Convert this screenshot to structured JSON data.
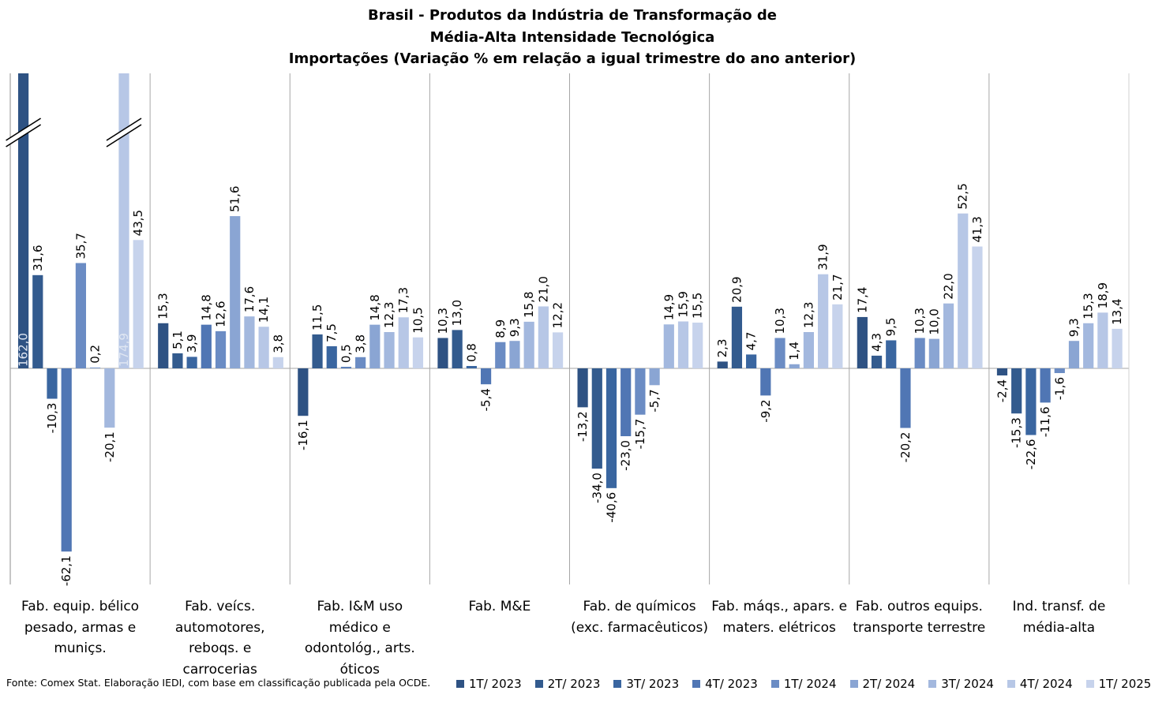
{
  "chart_data": {
    "type": "bar",
    "title_lines": [
      "Brasil - Produtos da Indústria de Transformação de",
      "Média-Alta Intensidade Tecnológica",
      "Importações (Variação % em relação a igual trimestre do ano anterior)"
    ],
    "categories": [
      [
        "Fab. equip. bélico",
        "pesado, armas e",
        "muniçs."
      ],
      [
        "Fab. veícs.",
        "automotores,",
        "reboqs. e",
        "carrocerias"
      ],
      [
        "Fab. I&M uso",
        "médico e",
        "odontológ., arts.",
        "óticos"
      ],
      [
        "Fab. M&E"
      ],
      [
        "Fab. de químicos",
        "(exc. farmacêuticos)"
      ],
      [
        "Fab. máqs., apars. e",
        "maters. elétricos"
      ],
      [
        "Fab. outros equips.",
        "transporte terrestre"
      ],
      [
        "Ind. transf. de",
        "média-alta"
      ]
    ],
    "series": [
      {
        "name": "1T/ 2023",
        "color": "#2e5283",
        "values": [
          162.0,
          15.3,
          -16.1,
          10.3,
          -13.2,
          2.3,
          17.4,
          -2.4
        ],
        "labels": [
          "162,0",
          "15,3",
          "-16,1",
          "10,3",
          "-13,2",
          "2,3",
          "17,4",
          "-2,4"
        ]
      },
      {
        "name": "2T/ 2023",
        "color": "#335b8e",
        "values": [
          31.6,
          5.1,
          11.5,
          13.0,
          -34.0,
          20.9,
          4.3,
          -15.3
        ],
        "labels": [
          "31,6",
          "5,1",
          "11,5",
          "13,0",
          "-34,0",
          "20,9",
          "4,3",
          "-15,3"
        ]
      },
      {
        "name": "3T/ 2023",
        "color": "#3a66a0",
        "values": [
          -10.3,
          3.9,
          7.5,
          0.8,
          -40.6,
          4.7,
          9.5,
          -22.6
        ],
        "labels": [
          "-10,3",
          "3,9",
          "7,5",
          "0,8",
          "-40,6",
          "4,7",
          "9,5",
          "-22,6"
        ]
      },
      {
        "name": "4T/ 2023",
        "color": "#5076b4",
        "values": [
          -62.1,
          14.8,
          0.5,
          -5.4,
          -23.0,
          -9.2,
          -20.2,
          -11.6
        ],
        "labels": [
          "-62,1",
          "14,8",
          "0,5",
          "-5,4",
          "-23,0",
          "-9,2",
          "-20,2",
          "-11,6"
        ]
      },
      {
        "name": "1T/ 2024",
        "color": "#6b8cc4",
        "values": [
          35.7,
          12.6,
          3.8,
          8.9,
          -15.7,
          10.3,
          10.3,
          -1.6
        ],
        "labels": [
          "35,7",
          "12,6",
          "3,8",
          "8,9",
          "-15,7",
          "10,3",
          "10,3",
          "-1,6"
        ]
      },
      {
        "name": "2T/ 2024",
        "color": "#8aa5d3",
        "values": [
          0.2,
          51.6,
          14.8,
          9.3,
          -5.7,
          1.4,
          10.0,
          9.3
        ],
        "labels": [
          "0,2",
          "51,6",
          "14,8",
          "9,3",
          "-5,7",
          "1,4",
          "10,0",
          "9,3"
        ]
      },
      {
        "name": "3T/ 2024",
        "color": "#a3b8de",
        "values": [
          -20.1,
          17.6,
          12.3,
          15.8,
          14.9,
          12.3,
          22.0,
          15.3
        ],
        "labels": [
          "-20,1",
          "17,6",
          "12,3",
          "15,8",
          "14,9",
          "12,3",
          "22,0",
          "15,3"
        ]
      },
      {
        "name": "4T/ 2024",
        "color": "#b7c7e6",
        "values": [
          174.9,
          14.1,
          17.3,
          21.0,
          15.9,
          31.9,
          52.5,
          18.9
        ],
        "labels": [
          "174,9",
          "14,1",
          "17,3",
          "21,0",
          "15,9",
          "31,9",
          "52,5",
          "18,9"
        ]
      },
      {
        "name": "1T/ 2025",
        "color": "#c7d3ec",
        "values": [
          43.5,
          3.8,
          10.5,
          12.2,
          15.5,
          21.7,
          41.3,
          13.4
        ],
        "labels": [
          "43,5",
          "3,8",
          "10,5",
          "12,2",
          "15,5",
          "21,7",
          "41,3",
          "13,4"
        ]
      }
    ],
    "axis_break_series": [
      0,
      7
    ],
    "grid": false,
    "legend_position": "bottom-right"
  },
  "footer": "Fonte: Comex Stat. Elaboração IEDI, com base em classificação publicada pela OCDE."
}
